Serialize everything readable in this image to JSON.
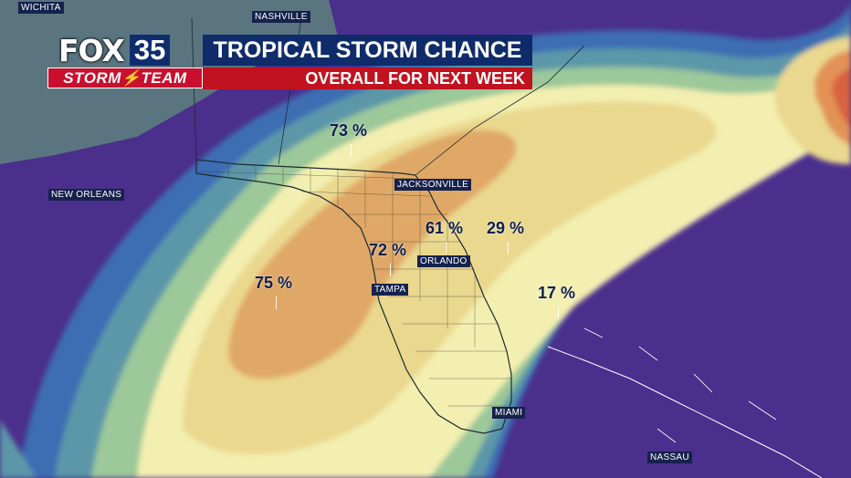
{
  "brand": {
    "fox": "FOX",
    "number": "35",
    "team": "STORM",
    "team2": "TEAM"
  },
  "title": "TROPICAL STORM CHANCE",
  "subtitle": "OVERALL FOR NEXT WEEK",
  "cities": {
    "wichita": "WICHITA",
    "nashville": "NASHVILLE",
    "new_orleans": "NEW ORLEANS",
    "jacksonville": "JACKSONVILLE",
    "orlando": "ORLANDO",
    "tampa": "TAMPA",
    "miami": "MIAMI",
    "nassau": "NASSAU"
  },
  "probabilities": {
    "north_georgia": "73 %",
    "gulf": "75 %",
    "central_fl": "72 %",
    "northeast_fl": "61 %",
    "atlantic_east": "29 %",
    "atlantic_south": "17 %"
  },
  "colors": {
    "purple": "#4b2f8c",
    "blue": "#3c6fb3",
    "green": "#8dbf9a",
    "light_yellow": "#f4f0ad",
    "yellow": "#e9d28c",
    "orange": "#e2a464",
    "red": "#d9623f"
  }
}
